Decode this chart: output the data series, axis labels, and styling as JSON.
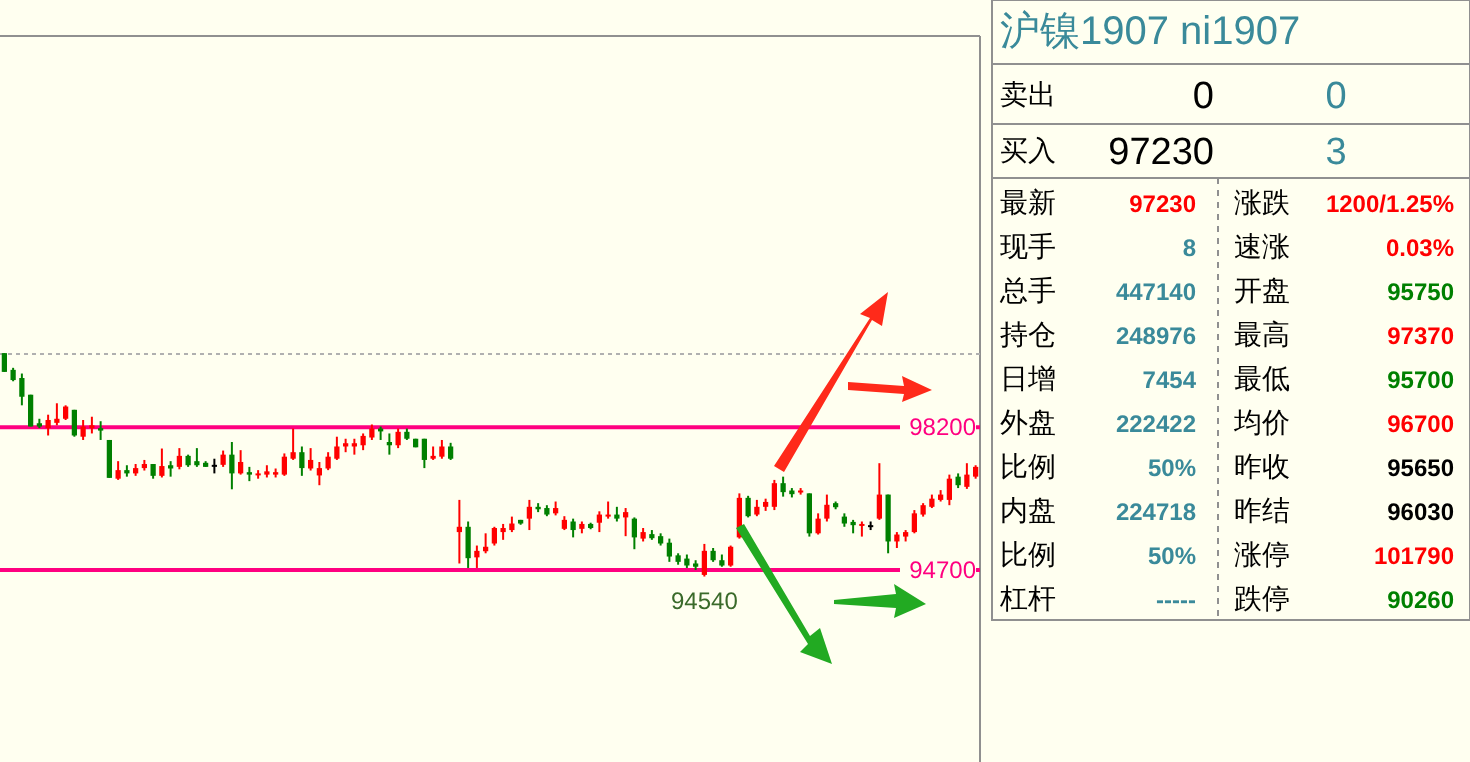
{
  "chart_data": [
    {
      "type": "candlestick",
      "categories": [
        null,
        null,
        null,
        null,
        null,
        null,
        null,
        null,
        null,
        null,
        null,
        null,
        null,
        null,
        null,
        null,
        null,
        null,
        null,
        null,
        null,
        null,
        null,
        null,
        null,
        null,
        null,
        null,
        null,
        null,
        null,
        null,
        null,
        null,
        null,
        null,
        null,
        null,
        null,
        null,
        null,
        null,
        null,
        null,
        null,
        null,
        null,
        null,
        null,
        null,
        null,
        null,
        null,
        null,
        null,
        null,
        null,
        null,
        null,
        null,
        null,
        null,
        null,
        null,
        null,
        null,
        null,
        null,
        null,
        null,
        null,
        null,
        null,
        null,
        null,
        null,
        null,
        null,
        null,
        null,
        null,
        null,
        null,
        null,
        null,
        null,
        null,
        null,
        null,
        null,
        null,
        null,
        null,
        null,
        null,
        null,
        null,
        null,
        null,
        null,
        null,
        null,
        null,
        null,
        null,
        null,
        null,
        null,
        null,
        null,
        null,
        null
      ],
      "ohlc": [
        [
          100020,
          100020,
          99560,
          99560
        ],
        [
          99610,
          99660,
          99330,
          99360
        ],
        [
          99410,
          99520,
          98740,
          98950
        ],
        [
          99000,
          99000,
          98220,
          98220
        ],
        [
          98300,
          98410,
          98180,
          98220
        ],
        [
          98180,
          98510,
          98000,
          98380
        ],
        [
          98310,
          98790,
          98250,
          98410
        ],
        [
          98410,
          98740,
          98380,
          98710
        ],
        [
          98630,
          98630,
          97970,
          98000
        ],
        [
          97970,
          98380,
          97890,
          98220
        ],
        [
          98180,
          98460,
          98050,
          98250
        ],
        [
          98180,
          98350,
          97890,
          98120
        ],
        [
          97890,
          97890,
          96960,
          96960
        ],
        [
          96940,
          97370,
          96910,
          97150
        ],
        [
          97150,
          97270,
          96990,
          97070
        ],
        [
          97070,
          97300,
          97010,
          97200
        ],
        [
          97200,
          97400,
          97140,
          97300
        ],
        [
          97300,
          97300,
          96940,
          97010
        ],
        [
          97010,
          97680,
          96970,
          97250
        ],
        [
          97270,
          97370,
          96990,
          97190
        ],
        [
          97230,
          97690,
          97170,
          97500
        ],
        [
          97500,
          97530,
          97230,
          97270
        ],
        [
          97370,
          97690,
          97230,
          97270
        ],
        [
          97330,
          97370,
          97230,
          97230
        ],
        [
          97280,
          97430,
          97070,
          97280
        ],
        [
          97280,
          97630,
          97230,
          97530
        ],
        [
          97530,
          97840,
          96680,
          97070
        ],
        [
          97070,
          97640,
          97040,
          97350
        ],
        [
          97100,
          97230,
          96880,
          97040
        ],
        [
          97040,
          97150,
          96940,
          97070
        ],
        [
          97040,
          97270,
          96970,
          97120
        ],
        [
          97040,
          97190,
          96970,
          97100
        ],
        [
          97040,
          97560,
          97010,
          97480
        ],
        [
          97430,
          98170,
          97400,
          97590
        ],
        [
          97590,
          97730,
          97010,
          97200
        ],
        [
          97190,
          97690,
          97140,
          97400
        ],
        [
          97020,
          97350,
          96780,
          97200
        ],
        [
          97190,
          97590,
          97150,
          97480
        ],
        [
          97430,
          97970,
          97400,
          97730
        ],
        [
          97730,
          97920,
          97590,
          97810
        ],
        [
          97730,
          97920,
          97530,
          97810
        ],
        [
          97760,
          98050,
          97640,
          97990
        ],
        [
          97950,
          98270,
          97890,
          98170
        ],
        [
          98170,
          98220,
          97890,
          98100
        ],
        [
          97840,
          98050,
          97530,
          97760
        ],
        [
          97760,
          98170,
          97690,
          98090
        ],
        [
          98090,
          98170,
          97890,
          97920
        ],
        [
          97920,
          97920,
          97710,
          97710
        ],
        [
          97920,
          97920,
          97200,
          97400
        ],
        [
          97430,
          97730,
          97400,
          97500
        ],
        [
          97480,
          97890,
          97430,
          97730
        ],
        [
          97730,
          97820,
          97400,
          97430
        ],
        [
          95630,
          96420,
          94860,
          95760
        ],
        [
          95760,
          95890,
          94750,
          94990
        ],
        [
          95010,
          95300,
          94750,
          95170
        ],
        [
          95160,
          95600,
          95110,
          95270
        ],
        [
          95350,
          95760,
          95300,
          95730
        ],
        [
          95630,
          95830,
          95440,
          95730
        ],
        [
          95680,
          96010,
          95630,
          95840
        ],
        [
          95930,
          95930,
          95810,
          95840
        ],
        [
          95960,
          96420,
          95680,
          96250
        ],
        [
          96250,
          96340,
          96120,
          96190
        ],
        [
          96220,
          96290,
          96020,
          96060
        ],
        [
          96090,
          96380,
          96040,
          96220
        ],
        [
          95710,
          96020,
          95680,
          95930
        ],
        [
          95890,
          95960,
          95500,
          95680
        ],
        [
          95710,
          95890,
          95600,
          95830
        ],
        [
          95830,
          95860,
          95700,
          95730
        ],
        [
          95860,
          96140,
          95630,
          96060
        ],
        [
          96010,
          96380,
          95960,
          96060
        ],
        [
          96060,
          96250,
          95890,
          95960
        ],
        [
          95990,
          96220,
          95530,
          96120
        ],
        [
          95960,
          95990,
          95210,
          95500
        ],
        [
          95470,
          95730,
          95400,
          95630
        ],
        [
          95580,
          95680,
          95440,
          95480
        ],
        [
          95530,
          95600,
          95300,
          95350
        ],
        [
          95370,
          95470,
          94900,
          95030
        ],
        [
          95060,
          95110,
          94830,
          94900
        ],
        [
          94980,
          95080,
          94750,
          94810
        ],
        [
          94860,
          94940,
          94700,
          94780
        ],
        [
          94580,
          95340,
          94540,
          95170
        ],
        [
          95170,
          95240,
          94900,
          94940
        ],
        [
          94940,
          95080,
          94780,
          94810
        ],
        [
          94810,
          95300,
          94780,
          95270
        ],
        [
          95500,
          96580,
          95470,
          96470
        ],
        [
          96470,
          96520,
          95990,
          96020
        ],
        [
          96060,
          96420,
          96020,
          96250
        ],
        [
          96250,
          96450,
          96150,
          96370
        ],
        [
          96250,
          96910,
          96170,
          96830
        ],
        [
          96830,
          96990,
          96500,
          96610
        ],
        [
          96650,
          96710,
          96480,
          96560
        ],
        [
          96610,
          96710,
          96550,
          96650
        ],
        [
          96580,
          96580,
          95520,
          95600
        ],
        [
          95600,
          96090,
          95570,
          95960
        ],
        [
          95960,
          96550,
          95890,
          96300
        ],
        [
          96340,
          96380,
          96190,
          96240
        ],
        [
          96010,
          96090,
          95760,
          95840
        ],
        [
          95880,
          95930,
          95600,
          95800
        ],
        [
          95800,
          95890,
          95520,
          95830
        ],
        [
          95800,
          95890,
          95680,
          95800
        ],
        [
          95960,
          97320,
          95930,
          96550
        ],
        [
          96550,
          96550,
          95110,
          95400
        ],
        [
          95400,
          95630,
          95240,
          95570
        ],
        [
          95520,
          95680,
          95400,
          95630
        ],
        [
          95630,
          96170,
          95600,
          96090
        ],
        [
          96060,
          96340,
          96010,
          96290
        ],
        [
          96250,
          96550,
          96220,
          96450
        ],
        [
          96420,
          96660,
          96380,
          96550
        ],
        [
          96420,
          97040,
          96290,
          96940
        ],
        [
          96990,
          97070,
          96710,
          96780
        ],
        [
          96740,
          97320,
          96690,
          97040
        ],
        [
          96990,
          97270,
          96940,
          97230
        ]
      ],
      "ylim": [
        89990,
        107800
      ],
      "yticks": [
        98200,
        94700
      ],
      "tick_labels": "y",
      "ref_lines": [
        {
          "axis": "y",
          "value": 98200,
          "label": "98200",
          "color": "#ff0080"
        },
        {
          "axis": "y",
          "value": 94700,
          "label": "94700",
          "color": "#ff0080"
        },
        {
          "axis": "y",
          "value": 100000,
          "color": "#b0b0b0",
          "line_style": "dotted"
        }
      ],
      "annotations": [
        {
          "text": "94540",
          "y": 94540
        }
      ]
    },
    {
      "type": "other",
      "title": "沪镍1907 ni1907",
      "annotations": [
        "卖出",
        "0",
        "0",
        "买入",
        "97230",
        "3",
        "最新",
        "97230",
        "涨跌",
        "1200/1.25%",
        "现手",
        "8",
        "速涨",
        "0.03%",
        "总手",
        "447140",
        "开盘",
        "95750",
        "持仓",
        "248976",
        "最高",
        "97370",
        "日增",
        "7454",
        "最低",
        "95700",
        "外盘",
        "222422",
        "均价",
        "96700",
        "比例",
        "50%",
        "昨收",
        "95650",
        "内盘",
        "224718",
        "昨结",
        "96030",
        "比例",
        "50%",
        "涨停",
        "101790",
        "杠杆",
        "-----",
        "跌停",
        "90260"
      ],
      "colors": [
        "#000000",
        "#000000",
        "#3a8a9a",
        "#000000",
        "#000000",
        "#3a8a9a",
        "#000000",
        "#ff0000",
        "#000000",
        "#ff0000",
        "#000000",
        "#3a8a9a",
        "#000000",
        "#ff0000",
        "#000000",
        "#3a8a9a",
        "#000000",
        "#008000",
        "#000000",
        "#3a8a9a",
        "#000000",
        "#ff0000",
        "#000000",
        "#3a8a9a",
        "#000000",
        "#008000",
        "#000000",
        "#3a8a9a",
        "#000000",
        "#ff0000",
        "#000000",
        "#3a8a9a",
        "#000000",
        "#000000",
        "#000000",
        "#3a8a9a",
        "#000000",
        "#000000",
        "#000000",
        "#3a8a9a",
        "#000000",
        "#ff0000",
        "#000000",
        "#3a8a9a",
        "#000000",
        "#008000"
      ]
    }
  ]
}
